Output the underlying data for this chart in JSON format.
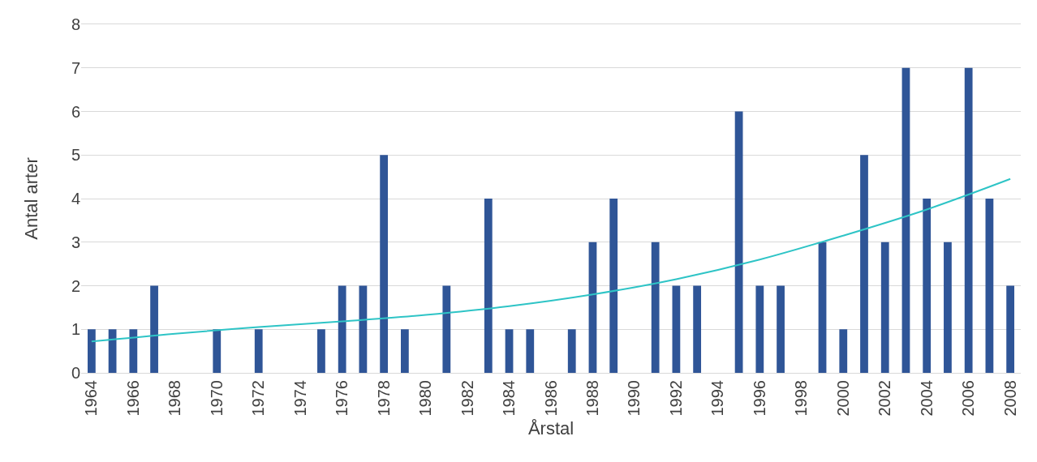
{
  "chart_data": {
    "type": "bar",
    "xlabel": "Årstal",
    "ylabel": "Antal arter",
    "x": [
      1964,
      1965,
      1966,
      1967,
      1968,
      1969,
      1970,
      1971,
      1972,
      1973,
      1974,
      1975,
      1976,
      1977,
      1978,
      1979,
      1980,
      1981,
      1982,
      1983,
      1984,
      1985,
      1986,
      1987,
      1988,
      1989,
      1990,
      1991,
      1992,
      1993,
      1994,
      1995,
      1996,
      1997,
      1998,
      1999,
      2000,
      2001,
      2002,
      2003,
      2004,
      2005,
      2006,
      2007,
      2008
    ],
    "series": [
      {
        "color": "#2f5597",
        "values": [
          1,
          1,
          1,
          2,
          0,
          0,
          1,
          0,
          1,
          0,
          0,
          1,
          2,
          2,
          5,
          1,
          0,
          2,
          0,
          4,
          1,
          1,
          0,
          1,
          3,
          4,
          0,
          3,
          2,
          2,
          0,
          6,
          2,
          2,
          0,
          3,
          1,
          5,
          3,
          7,
          4,
          3,
          7,
          4,
          2
        ]
      },
      {
        "type": "line",
        "color": "#2ec4c6",
        "x": [
          1964,
          1968,
          1972,
          1976,
          1980,
          1984,
          1988,
          1992,
          1996,
          2000,
          2004,
          2008
        ],
        "values": [
          0.72,
          0.9,
          1.05,
          1.18,
          1.33,
          1.53,
          1.8,
          2.15,
          2.6,
          3.15,
          3.75,
          4.45
        ]
      }
    ],
    "xlim": [
      1963.5,
      2008.5
    ],
    "xticks": [
      1964,
      1966,
      1968,
      1970,
      1972,
      1974,
      1976,
      1978,
      1980,
      1982,
      1984,
      1986,
      1988,
      1990,
      1992,
      1994,
      1996,
      1998,
      2000,
      2002,
      2004,
      2006,
      2008
    ],
    "ylim": [
      0,
      8
    ],
    "yticks": [
      0,
      1,
      2,
      3,
      4,
      5,
      6,
      7,
      8
    ],
    "grid": "y"
  }
}
